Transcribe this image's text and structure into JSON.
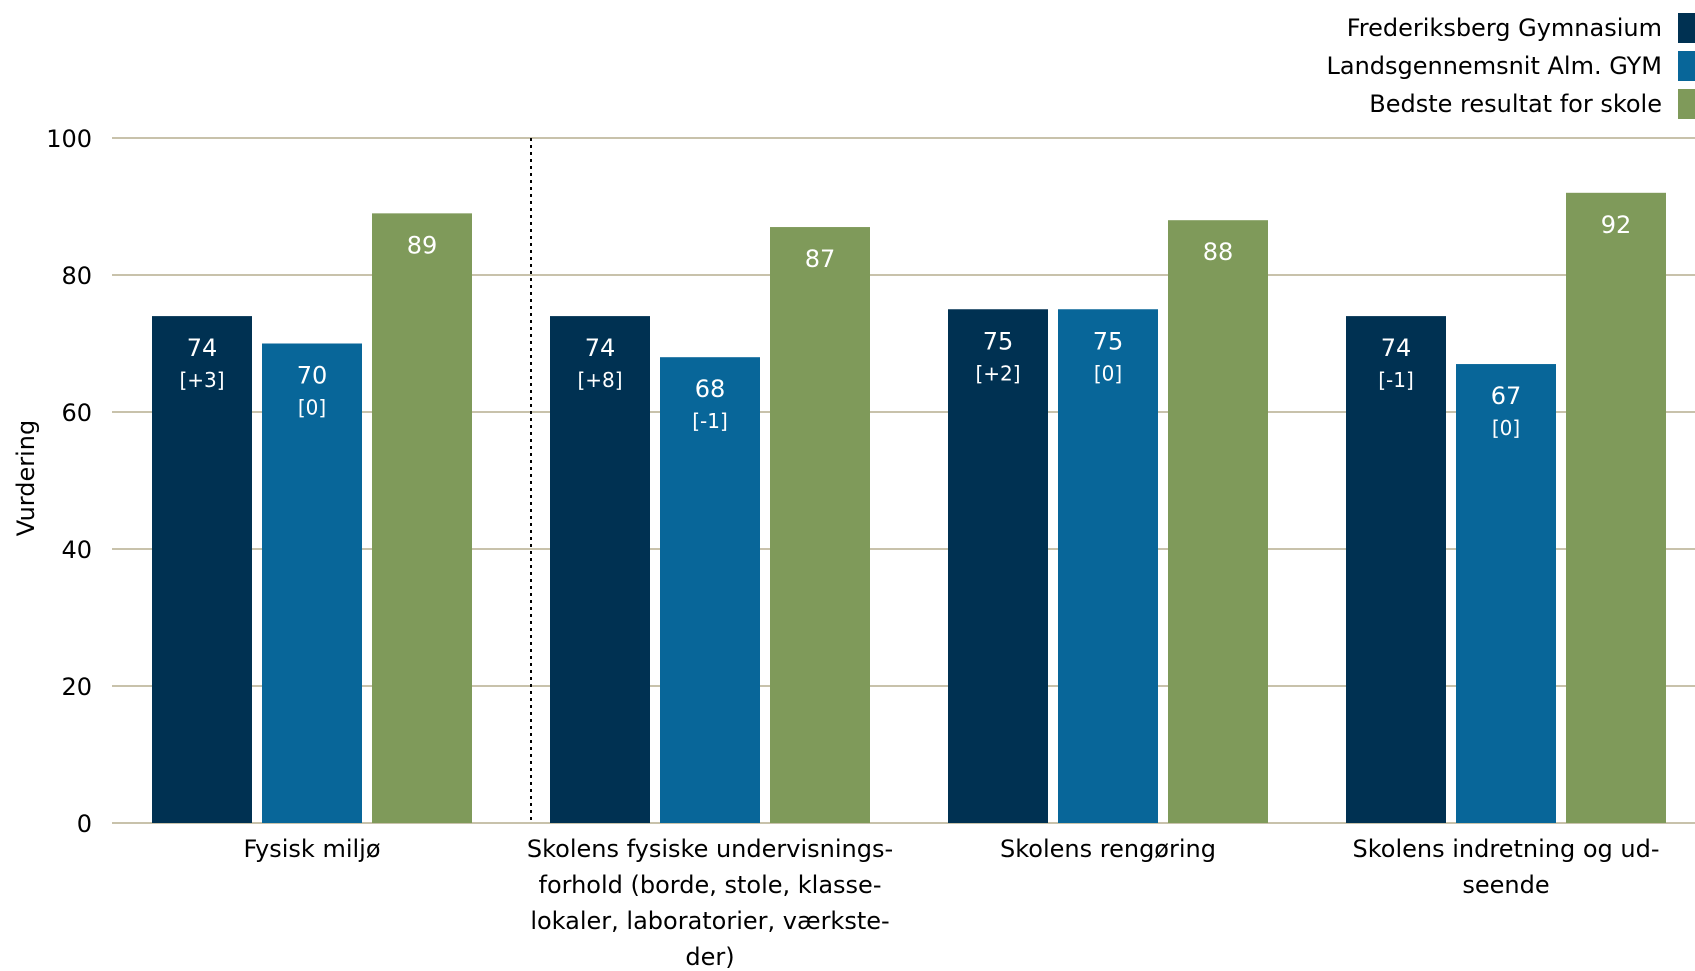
{
  "chart_data": {
    "type": "bar",
    "ylabel": "Vurdering",
    "ylim": [
      0,
      100
    ],
    "yticks": [
      0,
      20,
      40,
      60,
      80,
      100
    ],
    "grid": true,
    "legend_position": "top-right",
    "categories": [
      [
        "Fysisk miljø"
      ],
      [
        "Skolens fysiske undervisnings-",
        "forhold (borde, stole, klasse-",
        "lokaler, laboratorier, værkste-",
        "der)"
      ],
      [
        "Skolens rengøring"
      ],
      [
        "Skolens indretning og ud-",
        "seende"
      ]
    ],
    "series": [
      {
        "name": "Frederiksberg Gymnasium",
        "color": "#003152",
        "values": [
          74,
          74,
          75,
          74
        ],
        "value_labels": [
          "74",
          "74",
          "75",
          "74"
        ],
        "deltas": [
          "[+3]",
          "[+8]",
          "[+2]",
          "[-1]"
        ]
      },
      {
        "name": "Landsgennemsnit Alm. GYM",
        "color": "#086699",
        "values": [
          70,
          68,
          75,
          67
        ],
        "value_labels": [
          "70",
          "68",
          "75",
          "67"
        ],
        "deltas": [
          "[0]",
          "[-1]",
          "[0]",
          "[0]"
        ]
      },
      {
        "name": "Bedste resultat for skole",
        "color": "#7f9a5a",
        "values": [
          89,
          87,
          88,
          92
        ],
        "value_labels": [
          "89",
          "87",
          "88",
          "92"
        ],
        "deltas": [
          "",
          "",
          "",
          ""
        ]
      }
    ],
    "gridline_color": "#b5ad8f",
    "separator_after_category": 0
  }
}
